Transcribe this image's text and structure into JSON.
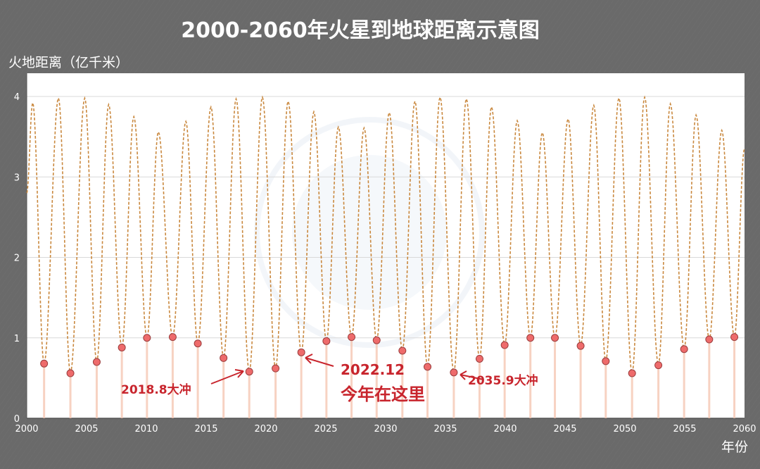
{
  "chart_data": {
    "type": "line",
    "title": "2000-2060年火星到地球距离示意图",
    "ylabel": "火地距离（亿千米）",
    "xlabel": "年份",
    "xlim": [
      2000,
      2060
    ],
    "ylim": [
      0,
      4.2
    ],
    "x_ticks": [
      2000,
      2005,
      2010,
      2015,
      2020,
      2025,
      2030,
      2035,
      2040,
      2045,
      2050,
      2055,
      2060
    ],
    "y_ticks": [
      0,
      1,
      2,
      3,
      4
    ],
    "grid": true,
    "line_color": "#c9883e",
    "point_color": "#ee6b6b",
    "series": [
      {
        "name": "",
        "points": [
          [
            2000.0,
            2.8
          ],
          [
            2000.5,
            3.92
          ],
          [
            2001.45,
            0.68
          ],
          [
            2002.65,
            3.98
          ],
          [
            2003.65,
            0.56
          ],
          [
            2004.85,
            3.98
          ],
          [
            2005.85,
            0.7
          ],
          [
            2006.85,
            3.9
          ],
          [
            2007.95,
            0.88
          ],
          [
            2008.95,
            3.75
          ],
          [
            2010.05,
            1.0
          ],
          [
            2011.0,
            3.56
          ],
          [
            2012.2,
            1.01
          ],
          [
            2013.3,
            3.69
          ],
          [
            2014.3,
            0.93
          ],
          [
            2015.4,
            3.87
          ],
          [
            2016.45,
            0.75
          ],
          [
            2017.5,
            3.97
          ],
          [
            2018.6,
            0.58
          ],
          [
            2019.7,
            3.99
          ],
          [
            2020.8,
            0.62
          ],
          [
            2021.85,
            3.94
          ],
          [
            2022.95,
            0.82
          ],
          [
            2024.0,
            3.81
          ],
          [
            2025.05,
            0.96
          ],
          [
            2026.05,
            3.62
          ],
          [
            2027.15,
            1.01
          ],
          [
            2028.2,
            3.61
          ],
          [
            2029.25,
            0.97
          ],
          [
            2030.3,
            3.8
          ],
          [
            2031.4,
            0.84
          ],
          [
            2032.45,
            3.94
          ],
          [
            2033.5,
            0.64
          ],
          [
            2034.55,
            3.99
          ],
          [
            2035.7,
            0.57
          ],
          [
            2036.75,
            3.97
          ],
          [
            2037.85,
            0.74
          ],
          [
            2038.85,
            3.87
          ],
          [
            2039.95,
            0.91
          ],
          [
            2041.0,
            3.7
          ],
          [
            2042.1,
            1.0
          ],
          [
            2043.1,
            3.55
          ],
          [
            2044.15,
            1.0
          ],
          [
            2045.25,
            3.72
          ],
          [
            2046.3,
            0.9
          ],
          [
            2047.4,
            3.89
          ],
          [
            2048.4,
            0.71
          ],
          [
            2049.5,
            3.98
          ],
          [
            2050.6,
            0.56
          ],
          [
            2051.65,
            3.99
          ],
          [
            2052.8,
            0.66
          ],
          [
            2053.8,
            3.91
          ],
          [
            2054.95,
            0.86
          ],
          [
            2055.95,
            3.77
          ],
          [
            2057.05,
            0.98
          ],
          [
            2058.1,
            3.58
          ],
          [
            2059.15,
            1.01
          ],
          [
            2060.0,
            3.35
          ]
        ]
      }
    ],
    "annotations": [
      {
        "text": "2018.8大冲",
        "x": 2018.6,
        "y": 0.58
      },
      {
        "text": "2022.12",
        "x": 2022.95,
        "y": 0.82
      },
      {
        "text": "今年在这里",
        "x": 2022.95,
        "y": 0.82
      },
      {
        "text": "2035.9大冲",
        "x": 2035.7,
        "y": 0.57
      }
    ]
  }
}
